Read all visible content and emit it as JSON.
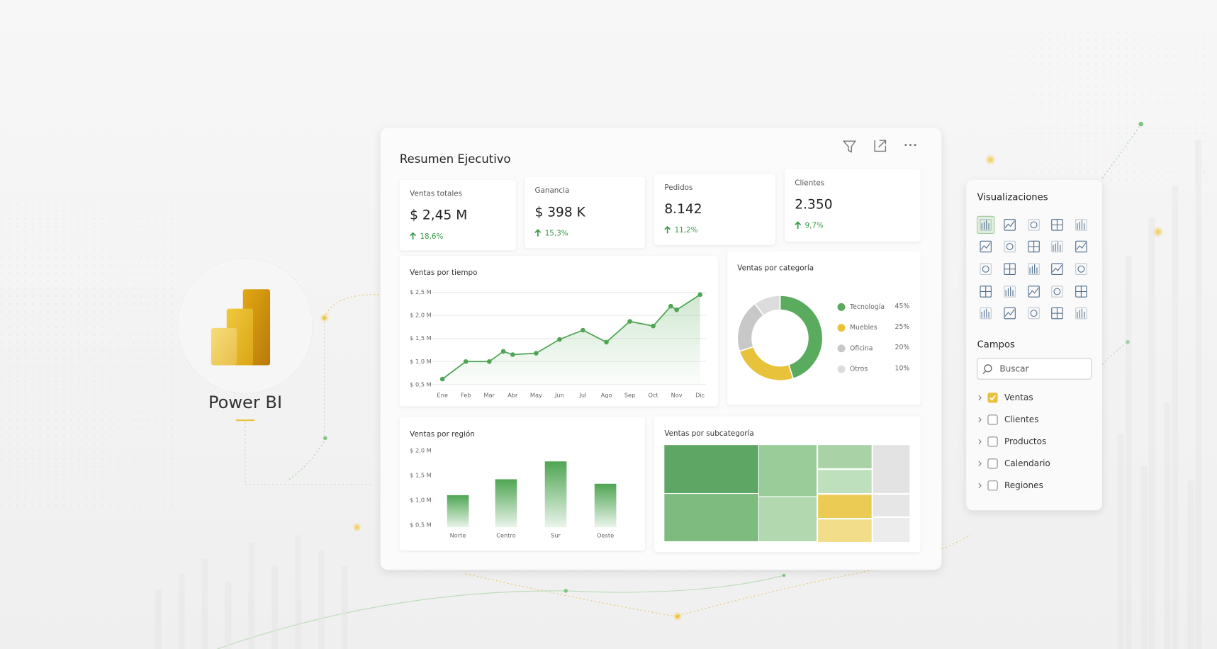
{
  "logo": {
    "label": "Power BI"
  },
  "dashboard": {
    "title": "Resumen Ejecutivo",
    "kpis": [
      {
        "label": "Ventas totales",
        "value": "$ 2,45 M",
        "change": "18,6%"
      },
      {
        "label": "Ganancia",
        "value": "$ 398 K",
        "change": "15,3%"
      },
      {
        "label": "Pedidos",
        "value": "8.142",
        "change": "11,2%"
      },
      {
        "label": "Clientes",
        "value": "2.350",
        "change": "9,7%"
      }
    ],
    "charts": [
      {
        "type": "line",
        "title": "Ventas por tiempo",
        "x": [
          0,
          1,
          2,
          2.6,
          3,
          4,
          5,
          6,
          7,
          8,
          9,
          9.75,
          10,
          11
        ],
        "values": [
          0.62,
          1.0,
          1.0,
          1.22,
          1.15,
          1.18,
          1.48,
          1.68,
          1.42,
          1.87,
          1.77,
          2.2,
          2.12,
          2.45
        ],
        "xlim": [
          0,
          11
        ],
        "xticks": [
          {
            "value": 0,
            "label": "Ene"
          },
          {
            "value": 1,
            "label": "Feb"
          },
          {
            "value": 2,
            "label": "Mar"
          },
          {
            "value": 3,
            "label": "Abr"
          },
          {
            "value": 4,
            "label": "May"
          },
          {
            "value": 5,
            "label": "Jun"
          },
          {
            "value": 6,
            "label": "Jul"
          },
          {
            "value": 7,
            "label": "Ago"
          },
          {
            "value": 8,
            "label": "Sep"
          },
          {
            "value": 9,
            "label": "Oct"
          },
          {
            "value": 10,
            "label": "Nov"
          },
          {
            "value": 11,
            "label": "Dic"
          }
        ],
        "ylim": [
          0.5,
          2.5
        ],
        "yticks": [
          {
            "value": 0.5,
            "label": "$ 0,5 M"
          },
          {
            "value": 1.0,
            "label": "$ 1,0 M"
          },
          {
            "value": 1.5,
            "label": "$ 1,5 M"
          },
          {
            "value": 2.0,
            "label": "$ 2,0 M"
          },
          {
            "value": 2.5,
            "label": "$ 2,5 M"
          }
        ],
        "color": "#4fa553",
        "grid": true
      },
      {
        "type": "donut",
        "title": "Ventas por categoría",
        "categories": [
          "Tecnología",
          "Muebles",
          "Oficina",
          "Otros"
        ],
        "values": [
          45,
          25,
          20,
          10
        ],
        "value_labels": [
          "45%",
          "25%",
          "20%",
          "10%"
        ],
        "colors": [
          "#5aab5e",
          "#e9c23c",
          "#c8c8c8",
          "#dcdcdc"
        ]
      },
      {
        "type": "bar",
        "title": "Ventas por región",
        "categories": [
          "Norte",
          "Centro",
          "Sur",
          "Oeste"
        ],
        "values": [
          1.1,
          1.42,
          1.78,
          1.33
        ],
        "ylim": [
          0.5,
          2.0
        ],
        "yticks": [
          {
            "value": 0.5,
            "label": "$ 0,5 M"
          },
          {
            "value": 1.0,
            "label": "$ 1,0 M"
          },
          {
            "value": 1.5,
            "label": "$ 1,5 M"
          },
          {
            "value": 2.0,
            "label": "$ 2,0 M"
          }
        ],
        "color": "#4fa553"
      },
      {
        "type": "treemap",
        "title": "Ventas por subcategoría"
      }
    ]
  },
  "panel": {
    "title": "Visualizaciones",
    "fields_title": "Campos",
    "search_placeholder": "Buscar",
    "fields": [
      {
        "label": "Ventas",
        "checked": true
      },
      {
        "label": "Clientes",
        "checked": false
      },
      {
        "label": "Productos",
        "checked": false
      },
      {
        "label": "Calendario",
        "checked": false
      },
      {
        "label": "Regiones",
        "checked": false
      }
    ]
  }
}
